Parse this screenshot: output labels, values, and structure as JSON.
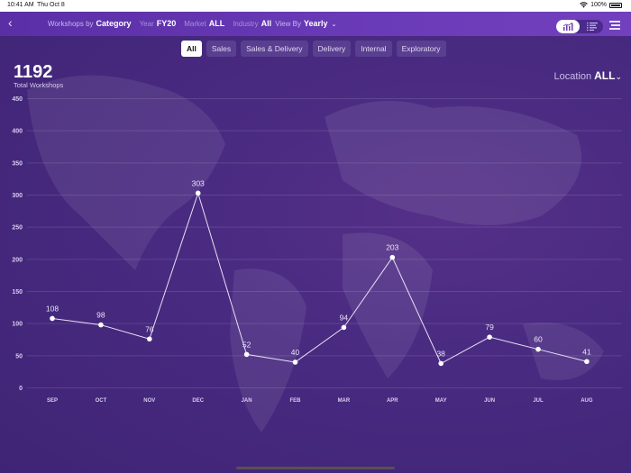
{
  "status_bar": {
    "time": "10:41 AM",
    "date": "Thu Oct 8",
    "battery": "100%"
  },
  "header": {
    "back_icon": "chevron-left-icon",
    "filters": [
      {
        "label": "Workshops by",
        "value": "Category"
      },
      {
        "label": "Year",
        "value": "FY20"
      },
      {
        "label": "Market",
        "value": "ALL"
      },
      {
        "label": "Industry",
        "value": "All"
      },
      {
        "label": "View By",
        "value": "Yearly"
      }
    ],
    "view_toggle": {
      "options": [
        "chart",
        "list"
      ],
      "selected": "chart"
    },
    "menu_icon": "hamburger-icon"
  },
  "category_tabs": {
    "items": [
      "All",
      "Sales",
      "Sales & Delivery",
      "Delivery",
      "Internal",
      "Exploratory"
    ],
    "selected": "All"
  },
  "summary": {
    "total": "1192",
    "label": "Total Workshops"
  },
  "location": {
    "label": "Location",
    "value": "ALL"
  },
  "colors": {
    "header": "#6a3bb8",
    "background": "#3f2475",
    "line": "#e8e0f5",
    "point": "#ffffff"
  },
  "chart_data": {
    "type": "line",
    "title": "Total Workshops",
    "categories": [
      "SEP",
      "OCT",
      "NOV",
      "DEC",
      "JAN",
      "FEB",
      "MAR",
      "APR",
      "MAY",
      "JUN",
      "JUL",
      "AUG"
    ],
    "values": [
      108,
      98,
      76,
      303,
      52,
      40,
      94,
      203,
      38,
      79,
      60,
      41
    ],
    "yticks": [
      0,
      50,
      100,
      150,
      200,
      250,
      300,
      350,
      400,
      450
    ],
    "ylim": [
      0,
      450
    ],
    "xlabel": "",
    "ylabel": "",
    "grid": true,
    "data_labels": true,
    "legend": false
  }
}
